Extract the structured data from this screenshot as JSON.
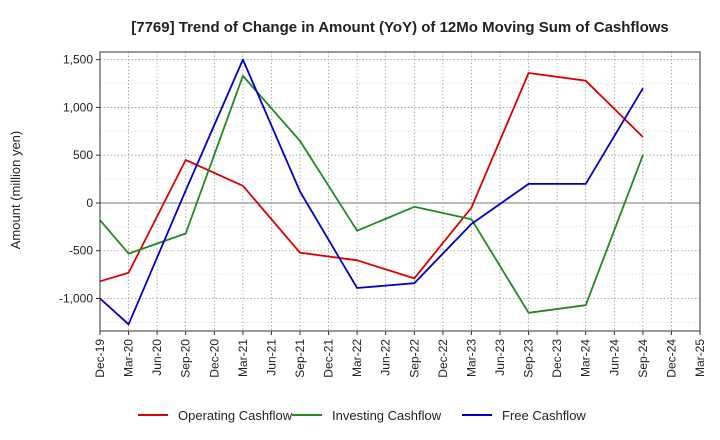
{
  "chart_data": {
    "type": "line",
    "title": "[7769]  Trend of Change in Amount (YoY) of 12Mo Moving Sum of Cashflows",
    "xlabel": "",
    "ylabel": "Amount (million yen)",
    "ylim": [
      -1340,
      1580
    ],
    "y_ticks": [
      -1000,
      -500,
      0,
      500,
      1000,
      1500
    ],
    "y_tick_labels": [
      "-1,000",
      "-500",
      "0",
      "500",
      "1,000",
      "1,500"
    ],
    "categories": [
      "Dec-19",
      "Mar-20",
      "Jun-20",
      "Sep-20",
      "Dec-20",
      "Mar-21",
      "Jun-21",
      "Sep-21",
      "Dec-21",
      "Mar-22",
      "Jun-22",
      "Sep-22",
      "Dec-22",
      "Mar-23",
      "Jun-23",
      "Sep-23",
      "Dec-23",
      "Mar-24",
      "Jun-24",
      "Sep-24",
      "Dec-24",
      "Mar-25"
    ],
    "grid": true,
    "legend_position": "bottom",
    "series": [
      {
        "name": "Operating Cashflow",
        "color": "#dd0000",
        "values": [
          -820,
          -730,
          null,
          450,
          null,
          180,
          null,
          -520,
          null,
          -600,
          null,
          -790,
          null,
          -50,
          null,
          1360,
          null,
          1280,
          null,
          690,
          null,
          null
        ]
      },
      {
        "name": "Investing Cashflow",
        "color": "#228822",
        "values": [
          -180,
          -530,
          null,
          -320,
          null,
          1330,
          null,
          650,
          null,
          -290,
          null,
          -40,
          null,
          -170,
          null,
          -1150,
          null,
          -1070,
          null,
          500,
          null,
          null
        ]
      },
      {
        "name": "Free Cashflow",
        "color": "#0000cc",
        "values": [
          -1000,
          -1270,
          null,
          130,
          null,
          1500,
          null,
          120,
          null,
          -890,
          null,
          -840,
          null,
          -220,
          null,
          200,
          null,
          200,
          null,
          1200,
          null,
          null
        ]
      }
    ]
  }
}
